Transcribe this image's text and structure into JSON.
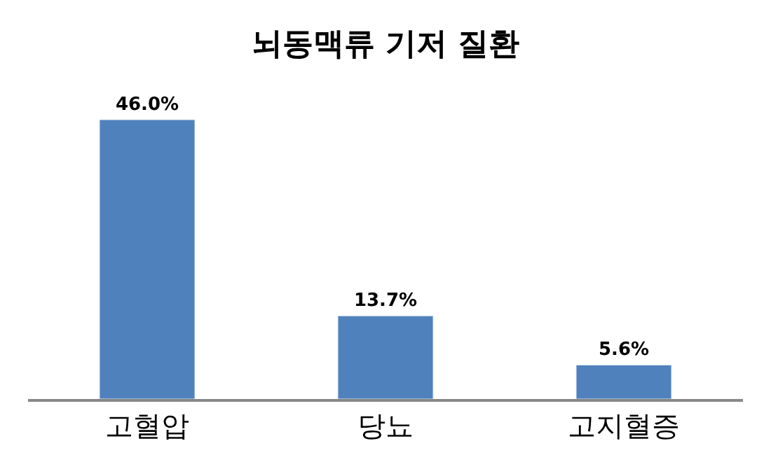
{
  "chart_data": {
    "type": "bar",
    "title": "뇌동맥류 기저 질환",
    "categories": [
      "고혈압",
      "당뇨",
      "고지혈증"
    ],
    "values": [
      46.0,
      13.7,
      5.6
    ],
    "value_labels": [
      "46.0%",
      "13.7%",
      "5.6%"
    ],
    "color": "#4f81bd"
  }
}
